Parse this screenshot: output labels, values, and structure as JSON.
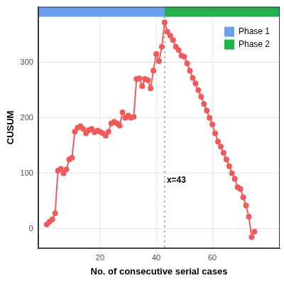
{
  "chart_data": {
    "type": "line",
    "x_label": "No. of consecutive serial cases",
    "y_label": "CUSUM",
    "x": [
      1,
      2,
      3,
      4,
      5,
      6,
      7,
      8,
      9,
      10,
      11,
      12,
      13,
      14,
      15,
      16,
      17,
      18,
      19,
      20,
      21,
      22,
      23,
      24,
      25,
      26,
      27,
      28,
      29,
      30,
      31,
      32,
      33,
      34,
      35,
      36,
      37,
      38,
      39,
      40,
      41,
      42,
      43,
      44,
      45,
      46,
      47,
      48,
      49,
      50,
      51,
      52,
      53,
      54,
      55,
      56,
      57,
      58,
      59,
      60,
      61,
      62,
      63,
      64,
      65,
      66,
      67,
      68,
      69,
      70,
      71,
      72,
      73,
      74,
      75
    ],
    "values": [
      8,
      13,
      17,
      28,
      105,
      108,
      100,
      107,
      125,
      128,
      175,
      182,
      185,
      180,
      172,
      178,
      180,
      174,
      177,
      175,
      172,
      168,
      175,
      190,
      193,
      190,
      186,
      210,
      200,
      204,
      200,
      202,
      270,
      271,
      257,
      270,
      268,
      253,
      285,
      315,
      302,
      328,
      372,
      355,
      348,
      340,
      328,
      322,
      312,
      310,
      298,
      285,
      272,
      262,
      250,
      238,
      225,
      213,
      200,
      188,
      172,
      157,
      148,
      137,
      125,
      113,
      100,
      90,
      75,
      72,
      57,
      42,
      22,
      -15,
      -5
    ],
    "color": "#f05a5a",
    "marker": "circle",
    "xlim": [
      -2,
      84
    ],
    "xticks": [
      20,
      40,
      60
    ],
    "ylim": [
      -35,
      400
    ],
    "yticks": [
      0,
      100,
      200,
      300
    ],
    "grid": true,
    "legend": "top right",
    "phases": [
      {
        "name": "Phase 1",
        "color": "#6a9ff0",
        "from": -2,
        "to": 43
      },
      {
        "name": "Phase 2",
        "color": "#21b24b",
        "from": 43,
        "to": 84
      }
    ],
    "vline": {
      "x": 43,
      "label": "x=43"
    }
  }
}
